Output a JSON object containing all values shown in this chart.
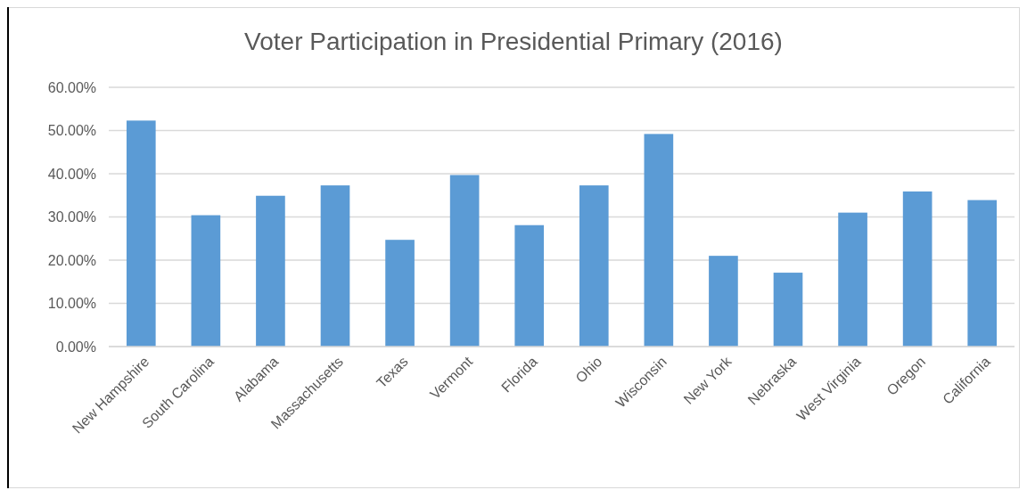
{
  "chart_data": {
    "type": "bar",
    "title": "Voter Participation in Presidential Primary (2016)",
    "categories": [
      "New Hampshire",
      "South Carolina",
      "Alabama",
      "Massachusetts",
      "Texas",
      "Vermont",
      "Florida",
      "Ohio",
      "Wisconsin",
      "New York",
      "Nebraska",
      "West Virginia",
      "Oregon",
      "California"
    ],
    "values": [
      52.3,
      30.4,
      34.9,
      37.3,
      24.7,
      39.7,
      28.1,
      37.3,
      49.2,
      21.0,
      17.1,
      31.0,
      35.9,
      33.9
    ],
    "color": "#5b9bd5",
    "ylim": [
      0,
      60
    ],
    "yticks": [
      {
        "value": 0,
        "label": "0.00%"
      },
      {
        "value": 10,
        "label": "10.00%"
      },
      {
        "value": 20,
        "label": "20.00%"
      },
      {
        "value": 30,
        "label": "30.00%"
      },
      {
        "value": 40,
        "label": "40.00%"
      },
      {
        "value": 50,
        "label": "50.00%"
      },
      {
        "value": 60,
        "label": "60.00%"
      }
    ],
    "grid": "y"
  }
}
